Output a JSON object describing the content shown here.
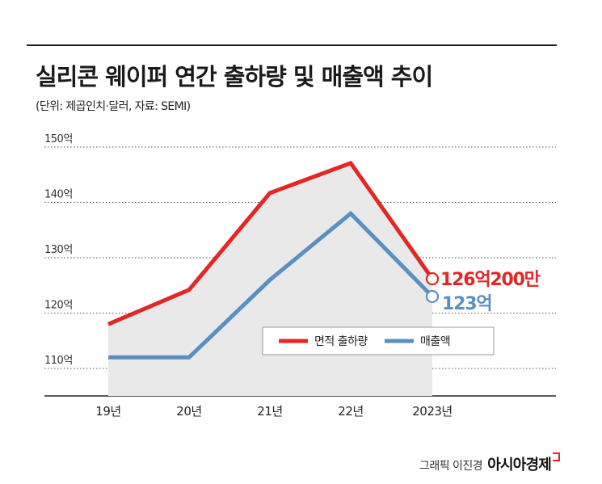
{
  "header": {
    "title": "실리콘 웨이퍼 연간 출하량 및 매출액 추이",
    "subtitle": "(단위: 제곱인치·달러, 자료: SEMI)"
  },
  "credit": {
    "text": "그래픽 이진경",
    "brand": "아시아경제"
  },
  "colors": {
    "shipment": "#e32626",
    "revenue": "#5b8fc0",
    "area_fill": "#e9e9ea",
    "grid": "#555555"
  },
  "chart_data": {
    "type": "line",
    "categories": [
      "19년",
      "20년",
      "21년",
      "22년",
      "2023년"
    ],
    "series": [
      {
        "name": "면적 출하량",
        "values": [
          118,
          124.2,
          141.7,
          147.1,
          126.2
        ],
        "end_label": "126억200만"
      },
      {
        "name": "매출액",
        "values": [
          112,
          112,
          126,
          138,
          123
        ],
        "end_label": "123억"
      }
    ],
    "y_ticks": [
      {
        "value": 150,
        "label": "150억"
      },
      {
        "value": 140,
        "label": "140억"
      },
      {
        "value": 130,
        "label": "130억"
      },
      {
        "value": 120,
        "label": "120억"
      },
      {
        "value": 110,
        "label": "110억"
      }
    ],
    "ylim": [
      105,
      150
    ],
    "grid": true,
    "legend_position": "inside-lower-right",
    "area_under_series": "면적 출하량"
  }
}
